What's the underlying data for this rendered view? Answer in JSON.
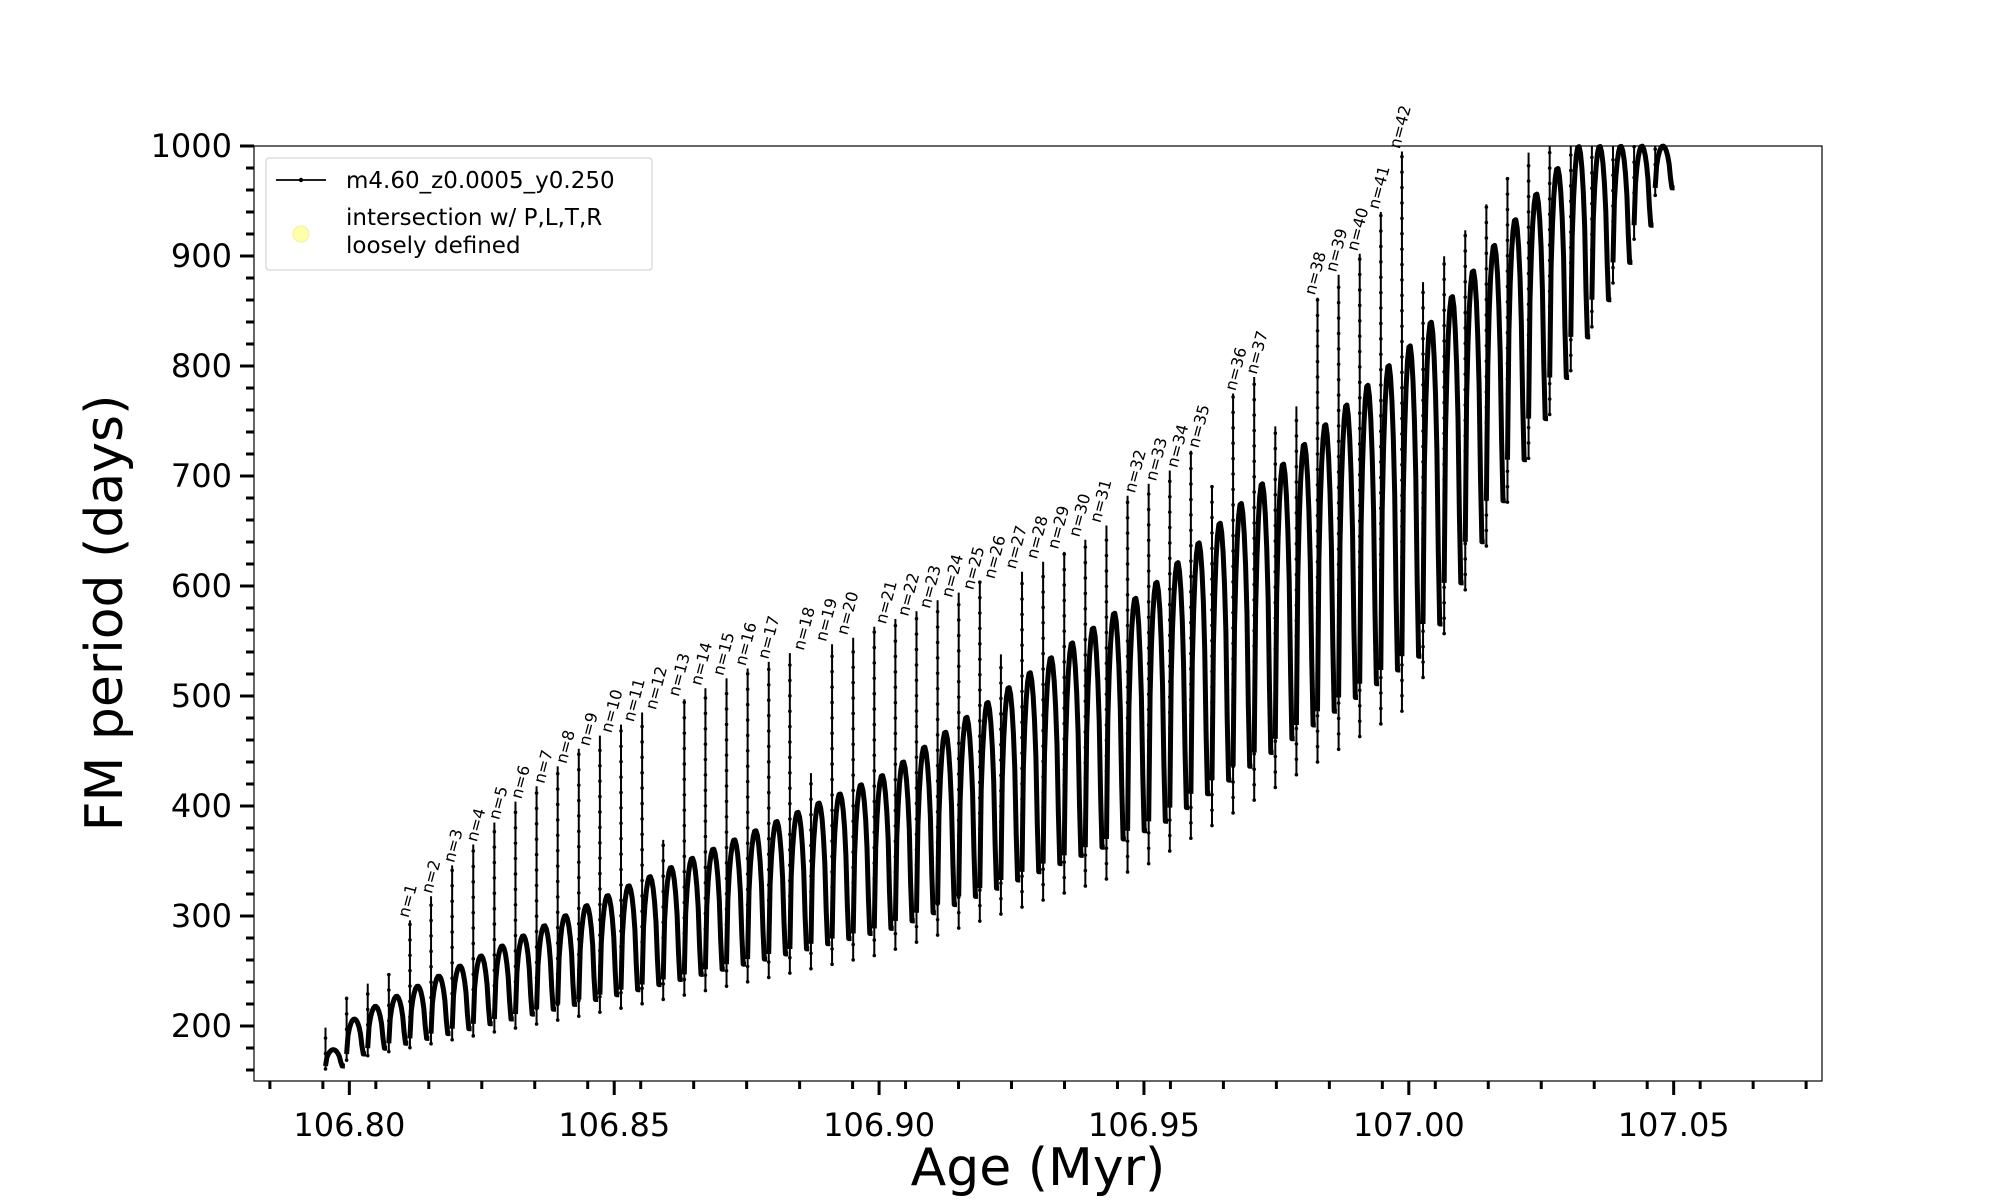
{
  "chart_data": {
    "type": "line",
    "xlabel": "Age (Myr)",
    "ylabel": "FM period (days)",
    "xlim": [
      106.782,
      107.078
    ],
    "ylim": [
      150,
      1000
    ],
    "xticks": [
      106.8,
      106.85,
      106.9,
      106.95,
      107.0,
      107.05
    ],
    "xtick_labels": [
      "106.80",
      "106.85",
      "106.90",
      "106.95",
      "107.00",
      "107.05"
    ],
    "yticks": [
      200,
      300,
      400,
      500,
      600,
      700,
      800,
      900,
      1000
    ],
    "ytick_labels": [
      "200",
      "300",
      "400",
      "500",
      "600",
      "700",
      "800",
      "900",
      "1000"
    ],
    "legend_position": "top-left",
    "series": [
      {
        "name": "m4.60_z0.0005_y0.250",
        "color": "#000000",
        "marker": "dot-line"
      },
      {
        "name": "intersection w/ P,L,T,R loosely defined",
        "color": "#ffffaa",
        "marker": "circle"
      }
    ],
    "pulse_x_start": 106.7955,
    "pulse_x_end": 107.0505,
    "pulse_count": 64,
    "envelope_age": [
      106.795,
      106.8,
      106.85,
      106.9,
      106.95,
      107.0,
      107.03
    ],
    "envelope_period": [
      175,
      210,
      325,
      430,
      600,
      825,
      1000
    ],
    "spike_min_age": [
      106.795,
      106.8,
      106.85,
      106.9,
      106.95,
      107.0,
      107.05
    ],
    "spike_min_period": [
      160,
      170,
      215,
      265,
      345,
      490,
      990
    ],
    "annotations": [
      {
        "label": "n=1",
        "x": 106.8104,
        "y": 296
      },
      {
        "label": "n=2",
        "x": 106.8148,
        "y": 318
      },
      {
        "label": "n=3",
        "x": 106.819,
        "y": 346
      },
      {
        "label": "n=4",
        "x": 106.8233,
        "y": 365
      },
      {
        "label": "n=5",
        "x": 106.8275,
        "y": 385
      },
      {
        "label": "n=6",
        "x": 106.8317,
        "y": 404
      },
      {
        "label": "n=7",
        "x": 106.836,
        "y": 418
      },
      {
        "label": "n=8",
        "x": 106.8402,
        "y": 436
      },
      {
        "label": "n=9",
        "x": 106.8445,
        "y": 452
      },
      {
        "label": "n=10",
        "x": 106.8487,
        "y": 464
      },
      {
        "label": "n=11",
        "x": 106.8529,
        "y": 474
      },
      {
        "label": "n=12",
        "x": 106.8571,
        "y": 485
      },
      {
        "label": "n=13",
        "x": 106.8614,
        "y": 497
      },
      {
        "label": "n=14",
        "x": 106.8656,
        "y": 507
      },
      {
        "label": "n=15",
        "x": 106.8698,
        "y": 516
      },
      {
        "label": "n=16",
        "x": 106.874,
        "y": 525
      },
      {
        "label": "n=17",
        "x": 106.8783,
        "y": 531
      },
      {
        "label": "n=18",
        "x": 106.885,
        "y": 539
      },
      {
        "label": "n=19",
        "x": 106.8892,
        "y": 547
      },
      {
        "label": "n=20",
        "x": 106.8932,
        "y": 553
      },
      {
        "label": "n=21",
        "x": 106.9005,
        "y": 563
      },
      {
        "label": "n=22",
        "x": 106.9047,
        "y": 570
      },
      {
        "label": "n=23",
        "x": 106.9088,
        "y": 577
      },
      {
        "label": "n=24",
        "x": 106.913,
        "y": 587
      },
      {
        "label": "n=25",
        "x": 106.917,
        "y": 594
      },
      {
        "label": "n=26",
        "x": 106.921,
        "y": 604
      },
      {
        "label": "n=27",
        "x": 106.925,
        "y": 613
      },
      {
        "label": "n=28",
        "x": 106.929,
        "y": 622
      },
      {
        "label": "n=29",
        "x": 106.933,
        "y": 631
      },
      {
        "label": "n=30",
        "x": 106.937,
        "y": 642
      },
      {
        "label": "n=31",
        "x": 106.941,
        "y": 655
      },
      {
        "label": "n=32",
        "x": 106.9475,
        "y": 682
      },
      {
        "label": "n=33",
        "x": 106.9515,
        "y": 693
      },
      {
        "label": "n=34",
        "x": 106.9555,
        "y": 705
      },
      {
        "label": "n=35",
        "x": 106.9595,
        "y": 723
      },
      {
        "label": "n=36",
        "x": 106.9665,
        "y": 775
      },
      {
        "label": "n=37",
        "x": 106.9705,
        "y": 790
      },
      {
        "label": "n=38",
        "x": 106.9815,
        "y": 862
      },
      {
        "label": "n=39",
        "x": 106.9855,
        "y": 883
      },
      {
        "label": "n=40",
        "x": 106.9895,
        "y": 902
      },
      {
        "label": "n=41",
        "x": 106.9935,
        "y": 940
      },
      {
        "label": "n=42",
        "x": 106.9975,
        "y": 995
      }
    ]
  }
}
